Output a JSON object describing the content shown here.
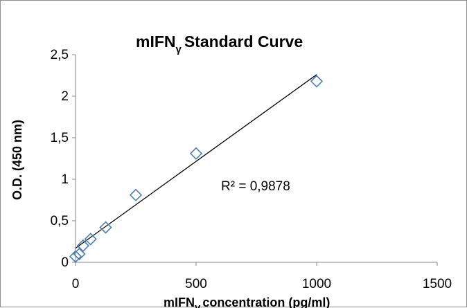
{
  "chart_data": {
    "type": "scatter",
    "title": {
      "main": "mIFN",
      "sub": "γ",
      "rest": "Standard Curve"
    },
    "xlabel": {
      "main": "mIFN",
      "sub": "γ",
      "rest": "concentration (pg/ml)"
    },
    "ylabel": "O.D. (450 nm)",
    "xlim": [
      0,
      1500
    ],
    "ylim": [
      0,
      2.5
    ],
    "x_ticks": [
      0,
      500,
      1000,
      1500
    ],
    "y_ticks": [
      0,
      0.5,
      1,
      1.5,
      2,
      2.5
    ],
    "x_tick_labels": [
      "0",
      "500",
      "1000",
      "1500"
    ],
    "y_tick_labels": [
      "0",
      "0,5",
      "1",
      "1,5",
      "2",
      "2,5"
    ],
    "grid": false,
    "legend": "none",
    "series": [
      {
        "marker": "diamond",
        "color": "#4a7ebb",
        "points": [
          {
            "x": 0,
            "y": 0.07
          },
          {
            "x": 15.6,
            "y": 0.1
          },
          {
            "x": 31.25,
            "y": 0.2
          },
          {
            "x": 62.5,
            "y": 0.28
          },
          {
            "x": 125,
            "y": 0.42
          },
          {
            "x": 250,
            "y": 0.81
          },
          {
            "x": 500,
            "y": 1.31
          },
          {
            "x": 1000,
            "y": 2.18
          }
        ]
      }
    ],
    "trendline": {
      "type": "linear",
      "x_range": [
        0,
        1000
      ],
      "y_start": 0.17,
      "y_end": 2.26,
      "color": "#000000"
    },
    "annotation": "R² = 0,9878"
  }
}
